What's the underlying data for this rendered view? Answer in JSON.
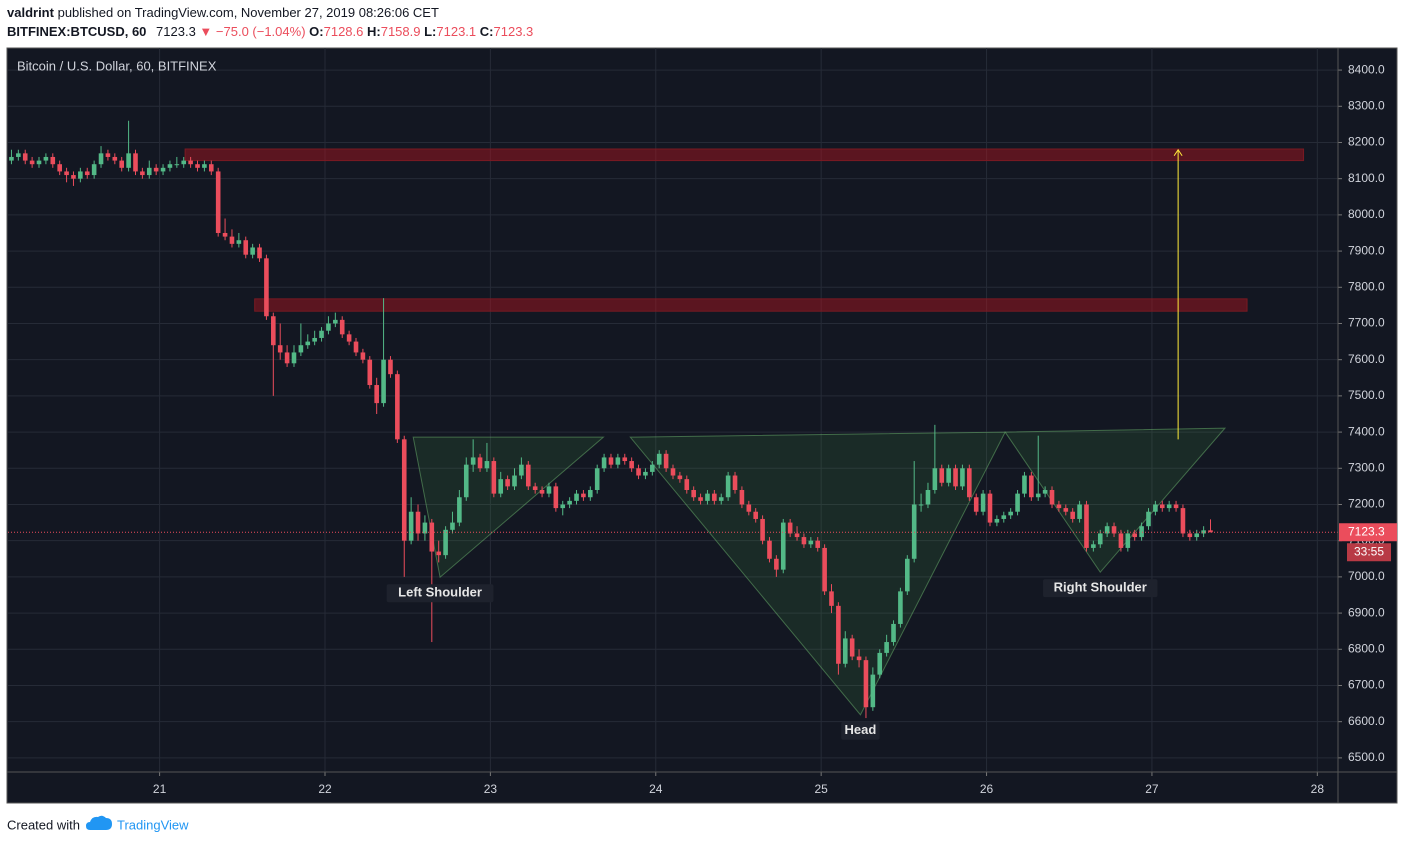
{
  "header": {
    "author": "valdrint",
    "published": "published on TradingView.com, November 27, 2019 08:26:06 CET",
    "symbol": "BITFINEX:BTCUSD, 60",
    "change": "▼ −75.0 (−1.04%)",
    "ohlc_labels": [
      "O:",
      "H:",
      "L:",
      "C:"
    ]
  },
  "chart_data": {
    "type": "candlestick",
    "title": "Bitcoin / U.S. Dollar, 60, BITFINEX",
    "up_color": "#53b987",
    "down_color": "#eb4d5c",
    "grid": true,
    "xlim": [
      -0.5,
      192.5
    ],
    "ylim": [
      6461,
      8461
    ],
    "xticks": [
      {
        "value": 21.5,
        "label": "21"
      },
      {
        "value": 45.5,
        "label": "22"
      },
      {
        "value": 69.5,
        "label": "23"
      },
      {
        "value": 93.5,
        "label": "24"
      },
      {
        "value": 117.5,
        "label": "25"
      },
      {
        "value": 141.5,
        "label": "26"
      },
      {
        "value": 165.5,
        "label": "27"
      },
      {
        "value": 189.5,
        "label": "28"
      }
    ],
    "yticks": [
      {
        "value": 6500,
        "label": "6500.0"
      },
      {
        "value": 6600,
        "label": "6600.0"
      },
      {
        "value": 6700,
        "label": "6700.0"
      },
      {
        "value": 6800,
        "label": "6800.0"
      },
      {
        "value": 6900,
        "label": "6900.0"
      },
      {
        "value": 7000,
        "label": "7000.0"
      },
      {
        "value": 7100,
        "label": "7100.0"
      },
      {
        "value": 7200,
        "label": "7200.0"
      },
      {
        "value": 7300,
        "label": "7300.0"
      },
      {
        "value": 7400,
        "label": "7400.0"
      },
      {
        "value": 7500,
        "label": "7500.0"
      },
      {
        "value": 7600,
        "label": "7600.0"
      },
      {
        "value": 7700,
        "label": "7700.0"
      },
      {
        "value": 7800,
        "label": "7800.0"
      },
      {
        "value": 7900,
        "label": "7900.0"
      },
      {
        "value": 8000,
        "label": "8000.0"
      },
      {
        "value": 8100,
        "label": "8100.0"
      },
      {
        "value": 8200,
        "label": "8200.0"
      },
      {
        "value": 8300,
        "label": "8300.0"
      },
      {
        "value": 8400,
        "label": "8400.0"
      }
    ],
    "countdown": "33:55",
    "zones": [
      {
        "start": 25.2,
        "end": 187.5,
        "low": 8150,
        "high": 8182
      },
      {
        "start": 35.3,
        "end": 179.3,
        "low": 7734,
        "high": 7768
      }
    ],
    "patterns": [
      {
        "label": "Left Shoulder",
        "points": [
          [
            58.3,
            7386
          ],
          [
            85.9,
            7386
          ],
          [
            62.2,
            6999
          ]
        ]
      },
      {
        "label": "Head",
        "points": [
          [
            89.8,
            7386
          ],
          [
            144.2,
            7400
          ],
          [
            123.2,
            6619
          ]
        ]
      },
      {
        "label": "Right Shoulder",
        "points": [
          [
            144.2,
            7400
          ],
          [
            176.1,
            7411
          ],
          [
            158.0,
            7013
          ]
        ]
      }
    ],
    "arrow": {
      "x": 169.3,
      "from": 7380,
      "to": 8180,
      "color": "#ffeb3b"
    },
    "ohlc": [
      [
        8150,
        8180,
        8140,
        8160
      ],
      [
        8160,
        8180,
        8150,
        8170
      ],
      [
        8170,
        8180,
        8140,
        8150
      ],
      [
        8150,
        8160,
        8130,
        8140
      ],
      [
        8140,
        8160,
        8130,
        8150
      ],
      [
        8150,
        8170,
        8140,
        8160
      ],
      [
        8160,
        8170,
        8130,
        8140
      ],
      [
        8140,
        8150,
        8110,
        8120
      ],
      [
        8120,
        8130,
        8090,
        8110
      ],
      [
        8110,
        8120,
        8080,
        8100
      ],
      [
        8100,
        8130,
        8090,
        8120
      ],
      [
        8120,
        8130,
        8100,
        8110
      ],
      [
        8110,
        8150,
        8100,
        8140
      ],
      [
        8140,
        8190,
        8130,
        8170
      ],
      [
        8170,
        8180,
        8150,
        8160
      ],
      [
        8160,
        8170,
        8140,
        8150
      ],
      [
        8150,
        8160,
        8120,
        8130
      ],
      [
        8130,
        8260,
        8120,
        8170
      ],
      [
        8170,
        8180,
        8110,
        8120
      ],
      [
        8120,
        8130,
        8100,
        8110
      ],
      [
        8110,
        8150,
        8100,
        8130
      ],
      [
        8130,
        8140,
        8110,
        8120
      ],
      [
        8120,
        8140,
        8110,
        8130
      ],
      [
        8130,
        8150,
        8120,
        8140
      ],
      [
        8140,
        8160,
        8130,
        8140
      ],
      [
        8140,
        8160,
        8130,
        8150
      ],
      [
        8150,
        8160,
        8130,
        8140
      ],
      [
        8140,
        8150,
        8120,
        8130
      ],
      [
        8130,
        8150,
        8120,
        8140
      ],
      [
        8140,
        8150,
        8110,
        8120
      ],
      [
        8120,
        8130,
        7940,
        7950
      ],
      [
        7950,
        7990,
        7930,
        7940
      ],
      [
        7940,
        7960,
        7910,
        7920
      ],
      [
        7920,
        7950,
        7910,
        7930
      ],
      [
        7930,
        7940,
        7880,
        7890
      ],
      [
        7890,
        7920,
        7880,
        7910
      ],
      [
        7910,
        7920,
        7870,
        7880
      ],
      [
        7880,
        7890,
        7710,
        7720
      ],
      [
        7720,
        7730,
        7500,
        7640
      ],
      [
        7640,
        7700,
        7600,
        7620
      ],
      [
        7620,
        7640,
        7580,
        7590
      ],
      [
        7590,
        7640,
        7580,
        7620
      ],
      [
        7620,
        7700,
        7610,
        7640
      ],
      [
        7640,
        7670,
        7630,
        7650
      ],
      [
        7650,
        7680,
        7640,
        7660
      ],
      [
        7660,
        7690,
        7650,
        7680
      ],
      [
        7680,
        7720,
        7670,
        7700
      ],
      [
        7700,
        7730,
        7690,
        7710
      ],
      [
        7710,
        7720,
        7660,
        7670
      ],
      [
        7670,
        7680,
        7640,
        7650
      ],
      [
        7650,
        7660,
        7610,
        7620
      ],
      [
        7620,
        7630,
        7590,
        7600
      ],
      [
        7600,
        7610,
        7520,
        7530
      ],
      [
        7530,
        7550,
        7450,
        7480
      ],
      [
        7480,
        7770,
        7470,
        7600
      ],
      [
        7600,
        7610,
        7550,
        7560
      ],
      [
        7560,
        7570,
        7370,
        7380
      ],
      [
        7380,
        7390,
        7000,
        7100
      ],
      [
        7100,
        7220,
        7090,
        7180
      ],
      [
        7180,
        7200,
        7100,
        7120
      ],
      [
        7120,
        7170,
        7100,
        7150
      ],
      [
        7150,
        7160,
        6820,
        7070
      ],
      [
        7070,
        7100,
        7040,
        7060
      ],
      [
        7060,
        7140,
        7050,
        7130
      ],
      [
        7130,
        7180,
        7120,
        7150
      ],
      [
        7150,
        7240,
        7140,
        7220
      ],
      [
        7220,
        7330,
        7210,
        7310
      ],
      [
        7310,
        7380,
        7290,
        7330
      ],
      [
        7330,
        7340,
        7290,
        7300
      ],
      [
        7300,
        7370,
        7290,
        7320
      ],
      [
        7320,
        7330,
        7220,
        7230
      ],
      [
        7230,
        7290,
        7220,
        7270
      ],
      [
        7270,
        7280,
        7240,
        7250
      ],
      [
        7250,
        7300,
        7240,
        7280
      ],
      [
        7280,
        7330,
        7270,
        7310
      ],
      [
        7310,
        7320,
        7240,
        7250
      ],
      [
        7250,
        7260,
        7230,
        7240
      ],
      [
        7240,
        7250,
        7220,
        7230
      ],
      [
        7230,
        7260,
        7220,
        7250
      ],
      [
        7250,
        7260,
        7180,
        7190
      ],
      [
        7190,
        7210,
        7170,
        7200
      ],
      [
        7200,
        7220,
        7190,
        7210
      ],
      [
        7210,
        7240,
        7200,
        7230
      ],
      [
        7230,
        7240,
        7210,
        7220
      ],
      [
        7220,
        7250,
        7210,
        7240
      ],
      [
        7240,
        7310,
        7230,
        7300
      ],
      [
        7300,
        7340,
        7290,
        7330
      ],
      [
        7330,
        7340,
        7300,
        7310
      ],
      [
        7310,
        7340,
        7300,
        7330
      ],
      [
        7330,
        7340,
        7310,
        7320
      ],
      [
        7320,
        7330,
        7290,
        7300
      ],
      [
        7300,
        7310,
        7270,
        7280
      ],
      [
        7280,
        7300,
        7270,
        7290
      ],
      [
        7290,
        7320,
        7280,
        7310
      ],
      [
        7310,
        7350,
        7300,
        7340
      ],
      [
        7340,
        7350,
        7290,
        7300
      ],
      [
        7300,
        7310,
        7270,
        7280
      ],
      [
        7280,
        7290,
        7260,
        7270
      ],
      [
        7270,
        7280,
        7230,
        7240
      ],
      [
        7240,
        7250,
        7210,
        7220
      ],
      [
        7220,
        7230,
        7200,
        7210
      ],
      [
        7210,
        7240,
        7200,
        7230
      ],
      [
        7230,
        7240,
        7200,
        7210
      ],
      [
        7210,
        7230,
        7200,
        7220
      ],
      [
        7220,
        7290,
        7210,
        7280
      ],
      [
        7280,
        7290,
        7230,
        7240
      ],
      [
        7240,
        7250,
        7190,
        7200
      ],
      [
        7200,
        7210,
        7170,
        7180
      ],
      [
        7180,
        7190,
        7150,
        7160
      ],
      [
        7160,
        7170,
        7090,
        7100
      ],
      [
        7100,
        7110,
        7040,
        7050
      ],
      [
        7050,
        7060,
        7000,
        7020
      ],
      [
        7020,
        7160,
        7010,
        7150
      ],
      [
        7150,
        7160,
        7110,
        7120
      ],
      [
        7120,
        7140,
        7100,
        7110
      ],
      [
        7110,
        7120,
        7080,
        7090
      ],
      [
        7090,
        7110,
        7080,
        7100
      ],
      [
        7100,
        7110,
        7070,
        7080
      ],
      [
        7080,
        7090,
        6950,
        6960
      ],
      [
        6960,
        6980,
        6900,
        6920
      ],
      [
        6920,
        6930,
        6730,
        6760
      ],
      [
        6760,
        6850,
        6750,
        6830
      ],
      [
        6830,
        6840,
        6770,
        6780
      ],
      [
        6780,
        6800,
        6750,
        6770
      ],
      [
        6770,
        6780,
        6610,
        6640
      ],
      [
        6640,
        6750,
        6630,
        6730
      ],
      [
        6730,
        6800,
        6720,
        6790
      ],
      [
        6790,
        6840,
        6780,
        6820
      ],
      [
        6820,
        6880,
        6810,
        6870
      ],
      [
        6870,
        6970,
        6860,
        6960
      ],
      [
        6960,
        7060,
        6950,
        7050
      ],
      [
        7050,
        7320,
        7040,
        7200
      ],
      [
        7200,
        7230,
        7180,
        7200
      ],
      [
        7200,
        7260,
        7190,
        7240
      ],
      [
        7240,
        7420,
        7230,
        7300
      ],
      [
        7300,
        7310,
        7250,
        7260
      ],
      [
        7260,
        7310,
        7250,
        7300
      ],
      [
        7300,
        7310,
        7240,
        7250
      ],
      [
        7250,
        7310,
        7240,
        7300
      ],
      [
        7300,
        7310,
        7210,
        7220
      ],
      [
        7220,
        7230,
        7170,
        7180
      ],
      [
        7180,
        7240,
        7170,
        7230
      ],
      [
        7230,
        7240,
        7140,
        7150
      ],
      [
        7150,
        7170,
        7140,
        7160
      ],
      [
        7160,
        7180,
        7150,
        7170
      ],
      [
        7170,
        7190,
        7160,
        7180
      ],
      [
        7180,
        7240,
        7170,
        7230
      ],
      [
        7230,
        7290,
        7220,
        7280
      ],
      [
        7280,
        7290,
        7210,
        7220
      ],
      [
        7220,
        7390,
        7210,
        7230
      ],
      [
        7230,
        7250,
        7220,
        7240
      ],
      [
        7240,
        7250,
        7190,
        7200
      ],
      [
        7200,
        7210,
        7180,
        7190
      ],
      [
        7190,
        7200,
        7170,
        7180
      ],
      [
        7180,
        7190,
        7150,
        7160
      ],
      [
        7160,
        7210,
        7150,
        7200
      ],
      [
        7200,
        7210,
        7070,
        7080
      ],
      [
        7080,
        7100,
        7070,
        7090
      ],
      [
        7090,
        7130,
        7080,
        7120
      ],
      [
        7120,
        7150,
        7110,
        7140
      ],
      [
        7140,
        7150,
        7110,
        7120
      ],
      [
        7120,
        7130,
        7070,
        7080
      ],
      [
        7080,
        7130,
        7070,
        7120
      ],
      [
        7120,
        7130,
        7100,
        7110
      ],
      [
        7110,
        7150,
        7100,
        7140
      ],
      [
        7140,
        7190,
        7130,
        7180
      ],
      [
        7180,
        7210,
        7170,
        7200
      ],
      [
        7200,
        7210,
        7180,
        7190
      ],
      [
        7190,
        7210,
        7180,
        7200
      ],
      [
        7200,
        7210,
        7180,
        7190
      ],
      [
        7190,
        7200,
        7110,
        7120
      ],
      [
        7120,
        7130,
        7100,
        7110
      ],
      [
        7110,
        7130,
        7100,
        7120
      ],
      [
        7120,
        7140,
        7110,
        7128.6
      ],
      [
        7128.6,
        7158.9,
        7123.1,
        7123.3
      ]
    ]
  },
  "footer": {
    "created": "Created with",
    "brand": "TradingView"
  }
}
